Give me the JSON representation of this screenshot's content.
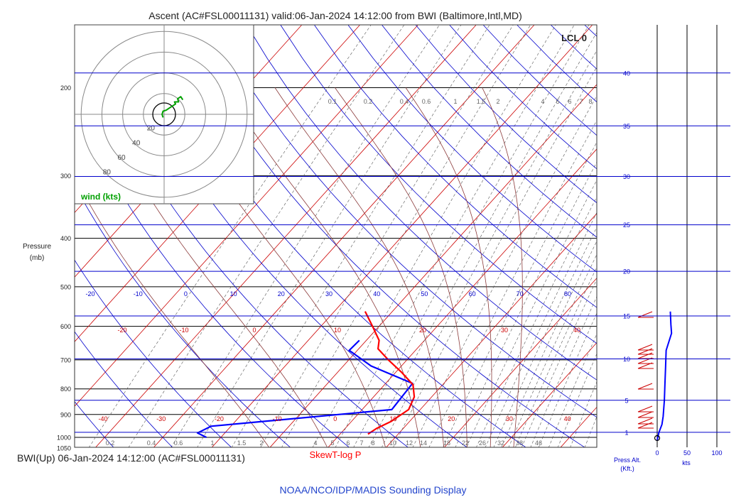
{
  "chart_data": {
    "type": "line",
    "title": "Ascent (AC#FSL00011131) valid:06-Jan-2024 14:12:00 from BWI (Baltimore,Intl,MD)",
    "ylabel_line1": "Pressure",
    "ylabel_line2": "(mb)",
    "lcl_label": "LCL 0",
    "bottom_left_label": "BWI(Up) 06-Jan-2024 14:12:00 (AC#FSL00011131)",
    "skewt_label": "SkewT-log P",
    "footer": "NOAA/NCO/IDP/MADIS Sounding Display",
    "press_alt_line1": "Press Alt.",
    "press_alt_line2": "(Kft.)",
    "kts_label": "kts",
    "pressure_ticks": [
      "200",
      "300",
      "400",
      "500",
      "600",
      "700",
      "800",
      "900",
      "1000",
      "1050"
    ],
    "pressure_ticks_p": [
      200,
      300,
      400,
      500,
      600,
      700,
      800,
      900,
      1000,
      1050
    ],
    "isobars_p": [
      200,
      300,
      400,
      500,
      600,
      700,
      800,
      900,
      1000,
      1050
    ],
    "upper_temp_labels": [
      "-20",
      "-10",
      "0",
      "10",
      "20",
      "30",
      "40",
      "50",
      "60",
      "70",
      "80"
    ],
    "upper_temp_values": [
      -20,
      -10,
      0,
      10,
      20,
      30,
      40,
      50,
      60,
      70,
      80
    ],
    "mid_temp_labels": [
      "-20",
      "-10",
      "0",
      "10",
      "20",
      "30",
      "40"
    ],
    "mid_temp_values": [
      -20,
      -10,
      0,
      10,
      20,
      30,
      40
    ],
    "lower_temp_labels": [
      "-40",
      "-30",
      "-20",
      "-10",
      "0",
      "10",
      "20",
      "30",
      "40"
    ],
    "lower_temp_values": [
      -40,
      -30,
      -20,
      -10,
      0,
      10,
      20,
      30,
      40
    ],
    "mixing_top_labels": [
      "0.1",
      "0.2",
      "0.4",
      "0.6",
      "1",
      "1.5",
      "2",
      "4",
      "5",
      "6",
      "7",
      "8"
    ],
    "mixing_bottom_labels": [
      "0.2",
      "0.4",
      "0.6",
      "1",
      "1.5",
      "2",
      "4",
      "5",
      "6",
      "7",
      "8",
      "10",
      "12",
      "14",
      "18",
      "22",
      "26",
      "32",
      "38",
      "46"
    ],
    "altitude_labels": [
      "1",
      "5",
      "10",
      "15",
      "20",
      "25",
      "30",
      "35",
      "40"
    ],
    "altitude_kft": [
      1,
      5,
      10,
      15,
      20,
      25,
      30,
      35,
      40
    ],
    "wind_speed_axis_labels": [
      "0",
      "50",
      "100"
    ],
    "wind_speed_axis_values": [
      0,
      50,
      100
    ],
    "hodograph_ring_labels": [
      "20",
      "40",
      "60",
      "80"
    ],
    "hodograph_ring_values": [
      20,
      40,
      60,
      80
    ],
    "hodograph_label": "wind (kts)",
    "temperature_profile": [
      {
        "p": 985,
        "t": 4.8
      },
      {
        "p": 960,
        "t": 5.4
      },
      {
        "p": 930,
        "t": 6.8
      },
      {
        "p": 880,
        "t": 8.0
      },
      {
        "p": 830,
        "t": 7.0
      },
      {
        "p": 785,
        "t": 4.9
      },
      {
        "p": 740,
        "t": 0.9
      },
      {
        "p": 700,
        "t": -3.2
      },
      {
        "p": 665,
        "t": -6.7
      },
      {
        "p": 640,
        "t": -7.8
      },
      {
        "p": 600,
        "t": -11.1
      },
      {
        "p": 560,
        "t": -14.7
      }
    ],
    "dewpoint_profile": [
      {
        "p": 1000,
        "t": -22.5
      },
      {
        "p": 980,
        "t": -24.7
      },
      {
        "p": 950,
        "t": -23.4
      },
      {
        "p": 880,
        "t": 5.1
      },
      {
        "p": 780,
        "t": 4.6
      },
      {
        "p": 720,
        "t": -5.2
      },
      {
        "p": 670,
        "t": -11.4
      },
      {
        "p": 640,
        "t": -11.2
      }
    ],
    "wind_speed_profile": [
      {
        "kft": 0.0,
        "kts": 0
      },
      {
        "kft": 1.0,
        "kts": 3
      },
      {
        "kft": 2.0,
        "kts": 8
      },
      {
        "kft": 3.0,
        "kts": 10
      },
      {
        "kft": 5.0,
        "kts": 12
      },
      {
        "kft": 7.0,
        "kts": 13
      },
      {
        "kft": 9.0,
        "kts": 14
      },
      {
        "kft": 11.0,
        "kts": 15
      },
      {
        "kft": 13.0,
        "kts": 24
      },
      {
        "kft": 14.0,
        "kts": 23
      },
      {
        "kft": 15.5,
        "kts": 22
      }
    ],
    "hodograph_points": [
      {
        "u": -1,
        "v": -3
      },
      {
        "u": -2,
        "v": 0
      },
      {
        "u": -1,
        "v": 3
      },
      {
        "u": 2,
        "v": 4
      },
      {
        "u": 5,
        "v": 6
      },
      {
        "u": 8,
        "v": 8
      },
      {
        "u": 11,
        "v": 10
      },
      {
        "u": 10,
        "v": 12
      },
      {
        "u": 14,
        "v": 12
      },
      {
        "u": 13,
        "v": 15
      },
      {
        "u": 16,
        "v": 17
      },
      {
        "u": 18,
        "v": 14
      }
    ],
    "colors": {
      "temperature": "#ff0000",
      "dewpoint": "#0000ff",
      "isotherm": "#cc0000",
      "dry_adiabat": "#0000cc",
      "moist_adiabat": "#8b3a3a",
      "mixing_ratio": "#555555",
      "altitude": "#0000cc",
      "hodograph": "#00a000"
    }
  }
}
